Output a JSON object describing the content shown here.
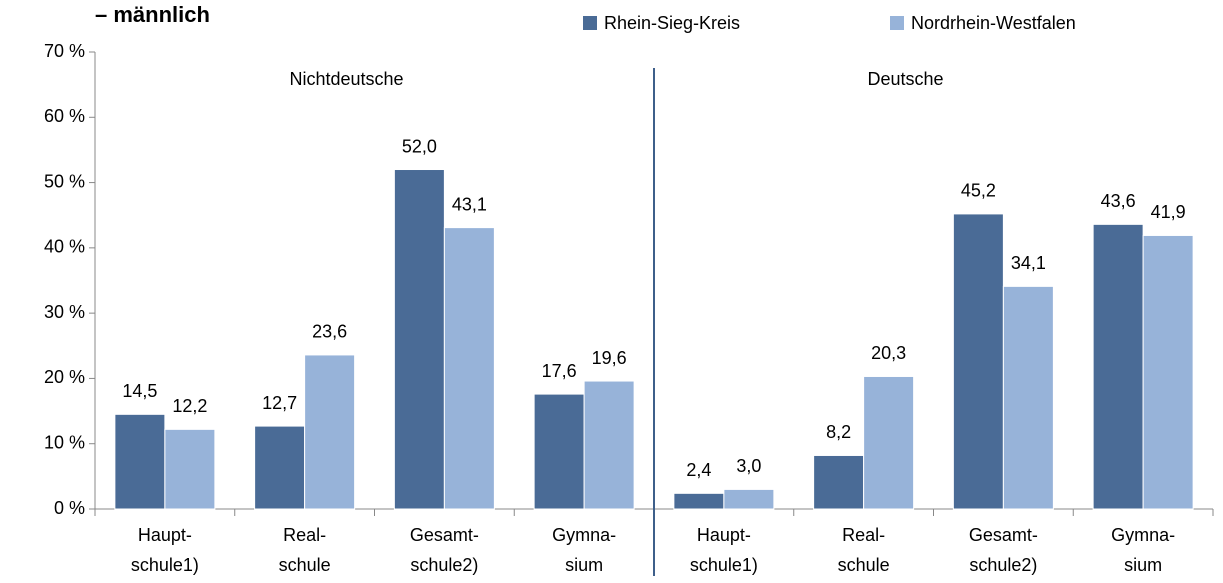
{
  "chart_data": {
    "type": "bar",
    "title": "– männlich",
    "groups": [
      "Nichtdeutsche",
      "Deutsche"
    ],
    "categories": [
      [
        "Haupt-",
        "schule1)"
      ],
      [
        "Real-",
        "schule"
      ],
      [
        "Gesamt-",
        "schule2)"
      ],
      [
        "Gymna-",
        "sium"
      ],
      [
        "Haupt-",
        "schule1)"
      ],
      [
        "Real-",
        "schule"
      ],
      [
        "Gesamt-",
        "schule2)"
      ],
      [
        "Gymna-",
        "sium"
      ]
    ],
    "series": [
      {
        "name": "Rhein-Sieg-Kreis",
        "color": "#4a6b96",
        "values": [
          14.5,
          12.7,
          52.0,
          17.6,
          2.4,
          8.2,
          45.2,
          43.6
        ],
        "value_labels": [
          "14,5",
          "12,7",
          "52,0",
          "17,6",
          "2,4",
          "8,2",
          "45,2",
          "43,6"
        ]
      },
      {
        "name": "Nordrhein-Westfalen",
        "color": "#97b3d9",
        "values": [
          12.2,
          23.6,
          43.1,
          19.6,
          3.0,
          20.3,
          34.1,
          41.9
        ],
        "value_labels": [
          "12,2",
          "23,6",
          "43,1",
          "19,6",
          "3,0",
          "20,3",
          "34,1",
          "41,9"
        ]
      }
    ],
    "ylim": [
      0,
      70
    ],
    "yticks": [
      {
        "value": 0,
        "label": "0 %"
      },
      {
        "value": 10,
        "label": "10 %"
      },
      {
        "value": 20,
        "label": "20 %"
      },
      {
        "value": 30,
        "label": "30 %"
      },
      {
        "value": 40,
        "label": "40 %"
      },
      {
        "value": 50,
        "label": "50 %"
      },
      {
        "value": 60,
        "label": "60 %"
      },
      {
        "value": 70,
        "label": "70 %"
      }
    ],
    "legend": "top-right"
  }
}
